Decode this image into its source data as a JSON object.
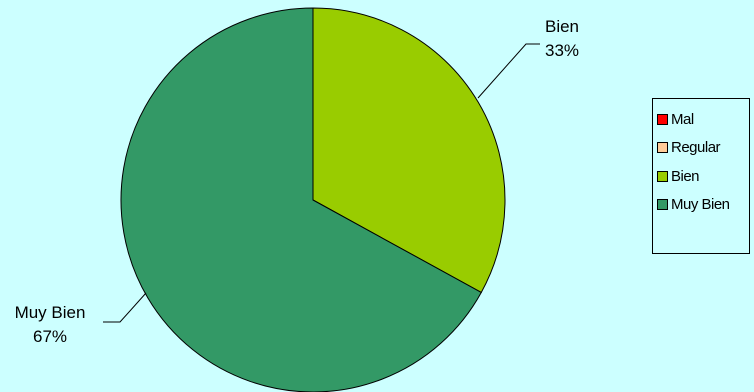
{
  "chart_data": {
    "type": "pie",
    "categories": [
      "Mal",
      "Regular",
      "Bien",
      "Muy Bien"
    ],
    "values": [
      0,
      0,
      33,
      67
    ],
    "colors": [
      "#ff0000",
      "#ffcc99",
      "#99cc00",
      "#339966"
    ],
    "data_labels": [
      {
        "category": "Bien",
        "text": "33%"
      },
      {
        "category": "Muy Bien",
        "text": "67%"
      }
    ],
    "legend_position": "right",
    "background": "#ccffff"
  }
}
